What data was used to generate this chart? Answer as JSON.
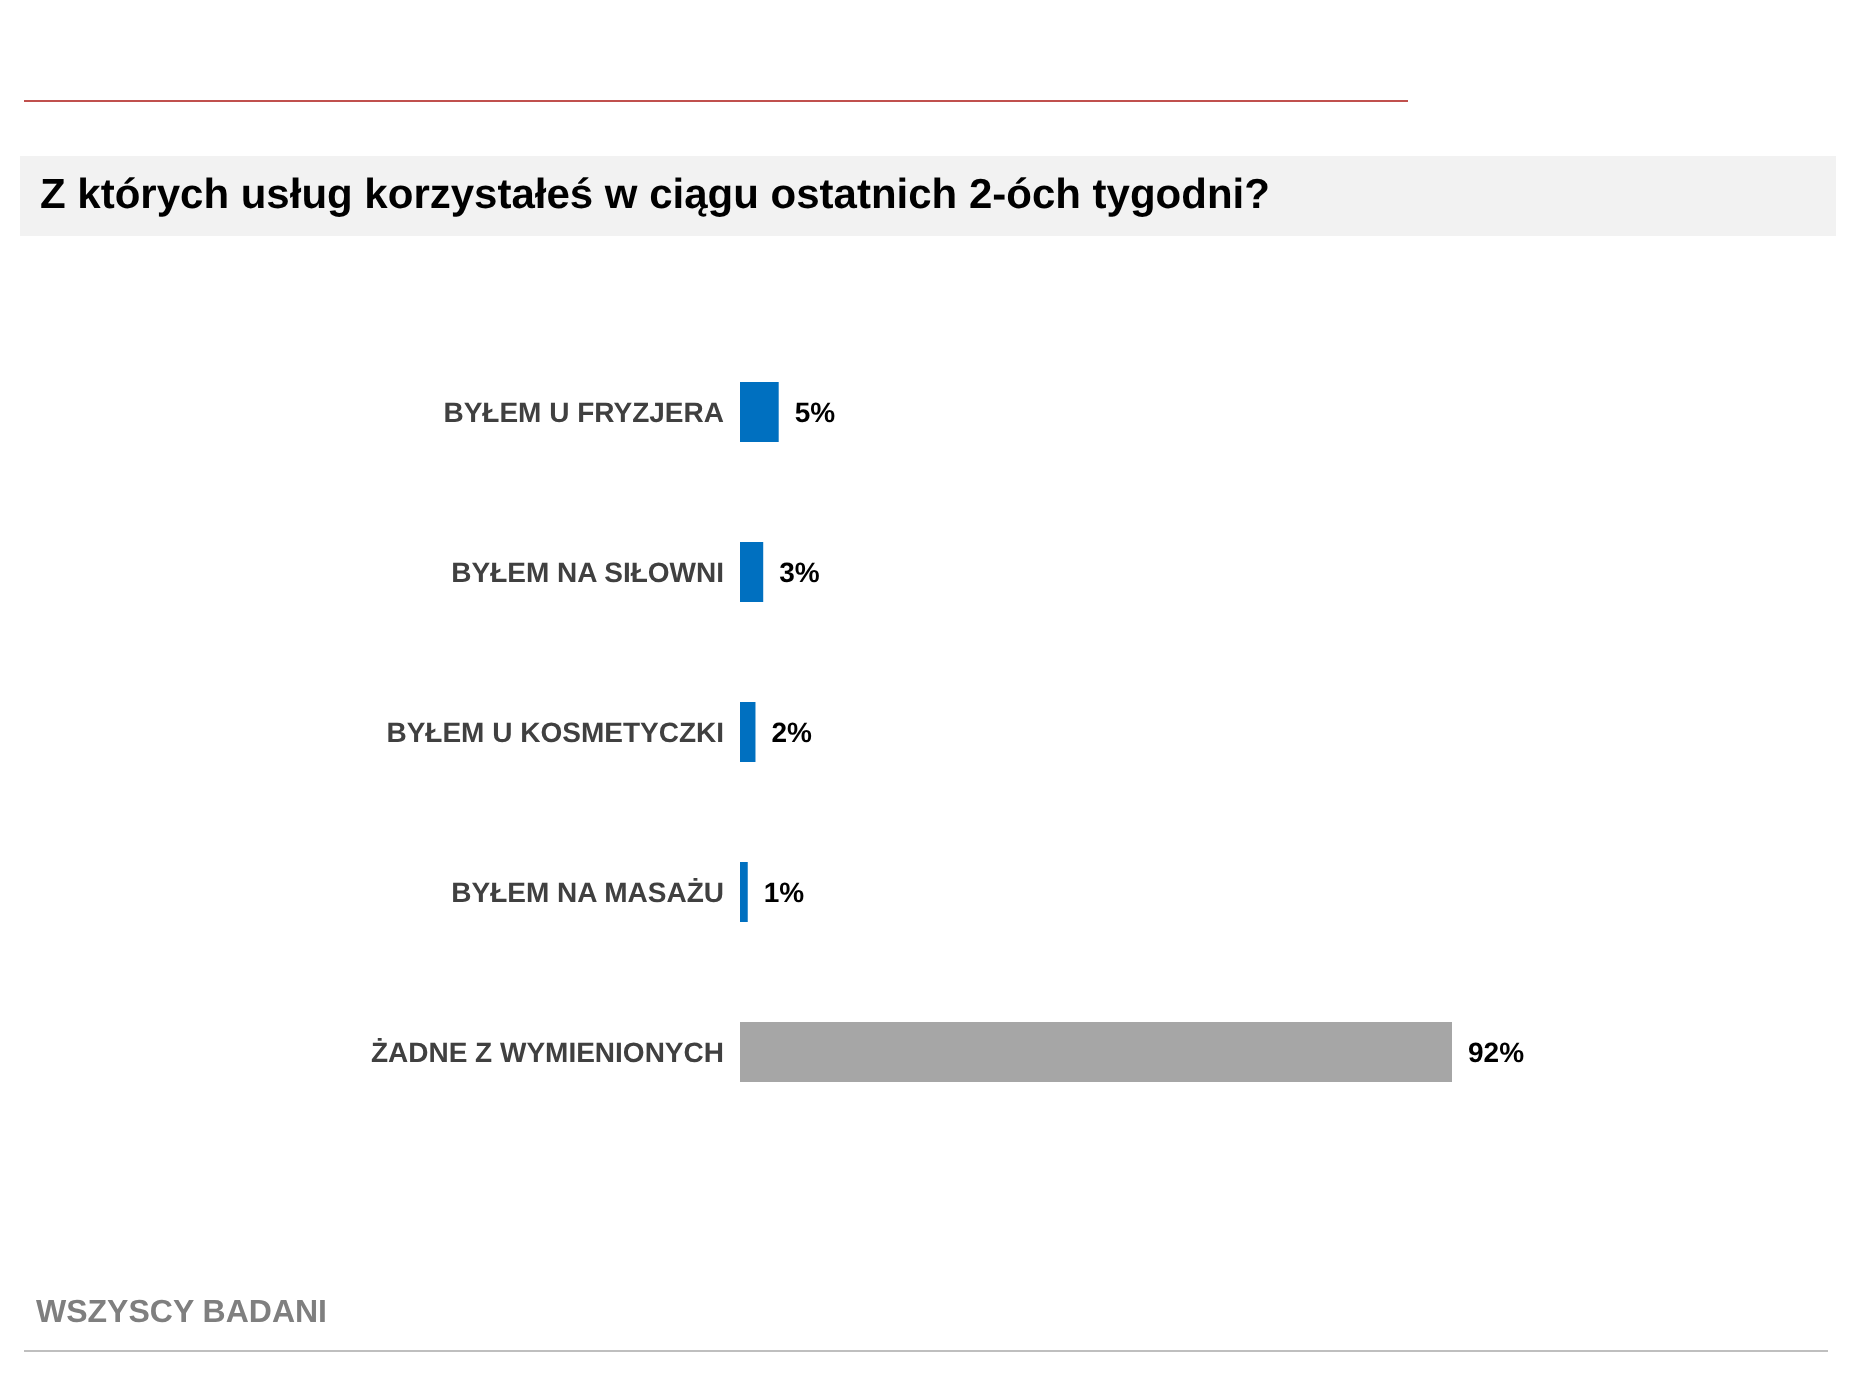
{
  "chart_data": {
    "type": "bar",
    "orientation": "horizontal",
    "title": "Z których usług korzystałeś w ciągu ostatnich 2-óch tygodni?",
    "categories": [
      "BYŁEM U FRYZJERA",
      "BYŁEM NA SIŁOWNI",
      "BYŁEM U KOSMETYCZKI",
      "BYŁEM NA MASAŻU",
      "ŻADNE Z WYMIENIONYCH"
    ],
    "values": [
      5,
      3,
      2,
      1,
      92
    ],
    "colors": [
      "#0070c0",
      "#0070c0",
      "#0070c0",
      "#0070c0",
      "#a6a6a6"
    ],
    "value_labels": [
      "5%",
      "3%",
      "2%",
      "1%",
      "92%"
    ],
    "annotations": [
      "WSZYSCY BADANI"
    ]
  }
}
